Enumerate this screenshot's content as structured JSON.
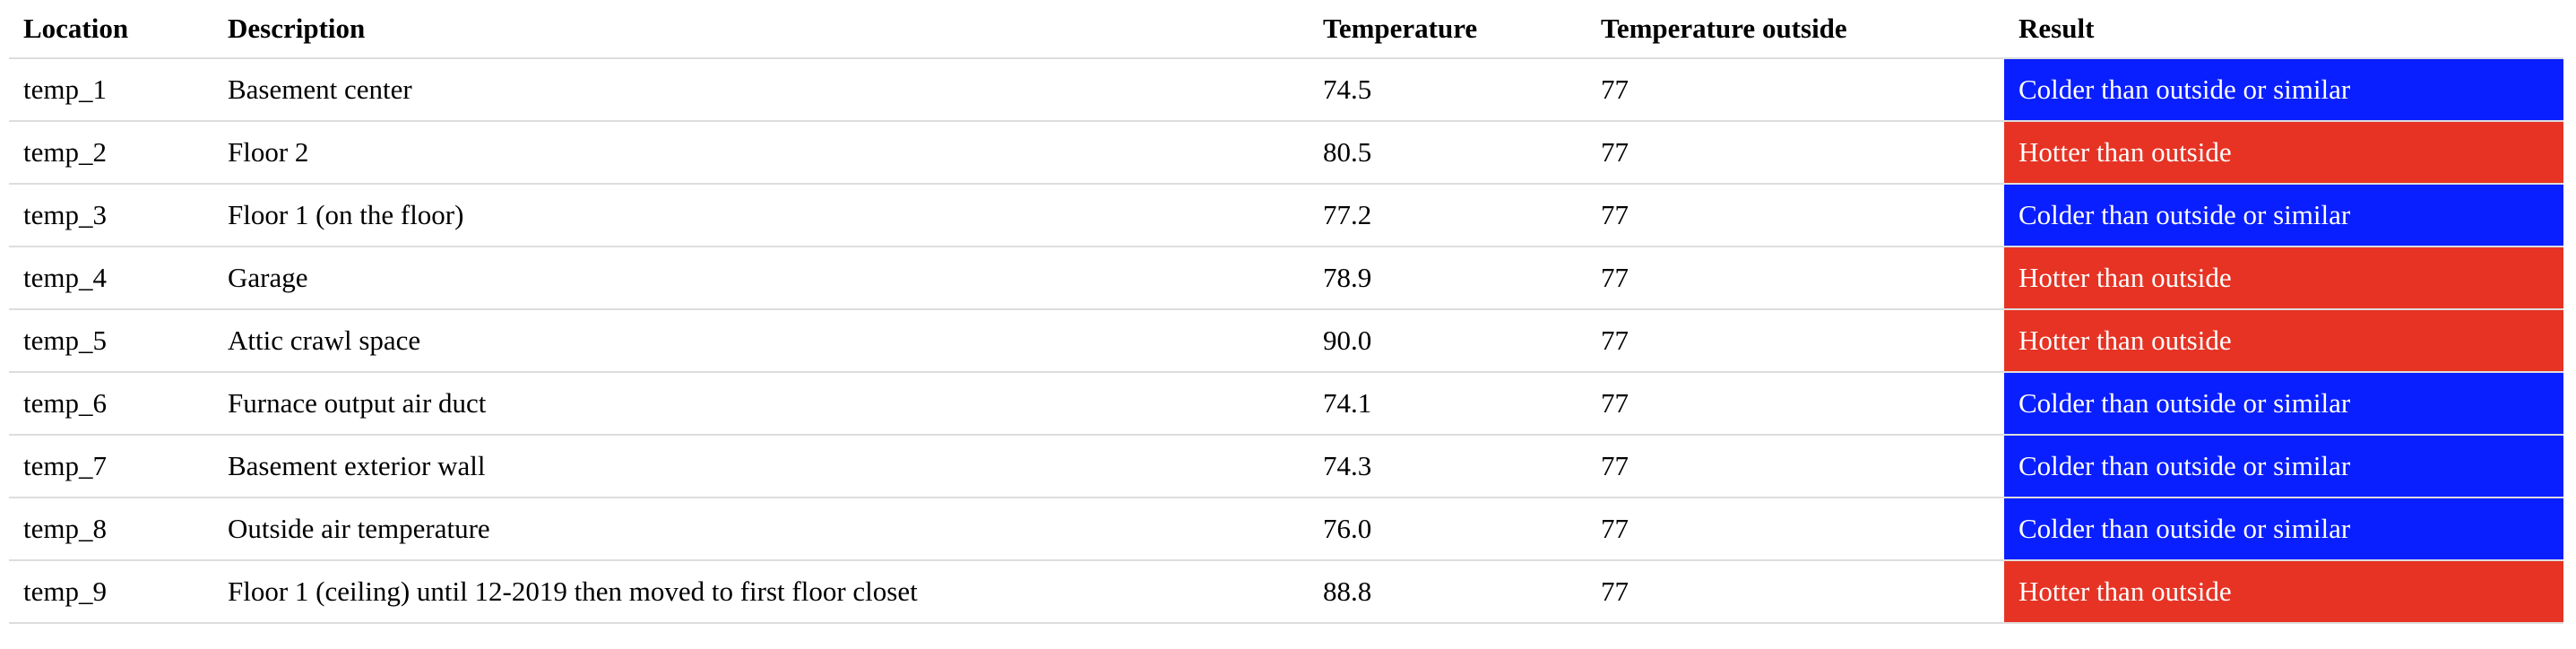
{
  "table": {
    "headers": [
      "Location",
      "Description",
      "Temperature",
      "Temperature outside",
      "Result"
    ],
    "rows": [
      {
        "location": "temp_1",
        "description": "Basement center",
        "temperature": "74.5",
        "outside": "77",
        "result": "Colder than outside or similar",
        "result_color": "#0a1fff"
      },
      {
        "location": "temp_2",
        "description": "Floor 2",
        "temperature": "80.5",
        "outside": "77",
        "result": "Hotter than outside",
        "result_color": "#e63324"
      },
      {
        "location": "temp_3",
        "description": "Floor 1 (on the floor)",
        "temperature": "77.2",
        "outside": "77",
        "result": "Colder than outside or similar",
        "result_color": "#0a1fff"
      },
      {
        "location": "temp_4",
        "description": "Garage",
        "temperature": "78.9",
        "outside": "77",
        "result": "Hotter than outside",
        "result_color": "#e63324"
      },
      {
        "location": "temp_5",
        "description": "Attic crawl space",
        "temperature": "90.0",
        "outside": "77",
        "result": "Hotter than outside",
        "result_color": "#e63324"
      },
      {
        "location": "temp_6",
        "description": "Furnace output air duct",
        "temperature": "74.1",
        "outside": "77",
        "result": "Colder than outside or similar",
        "result_color": "#0a1fff"
      },
      {
        "location": "temp_7",
        "description": "Basement exterior wall",
        "temperature": "74.3",
        "outside": "77",
        "result": "Colder than outside or similar",
        "result_color": "#0a1fff"
      },
      {
        "location": "temp_8",
        "description": "Outside air temperature",
        "temperature": "76.0",
        "outside": "77",
        "result": "Colder than outside or similar",
        "result_color": "#0a1fff"
      },
      {
        "location": "temp_9",
        "description": "Floor 1 (ceiling) until 12-2019 then moved to first floor closet",
        "temperature": "88.8",
        "outside": "77",
        "result": "Hotter than outside",
        "result_color": "#e63324"
      }
    ]
  }
}
